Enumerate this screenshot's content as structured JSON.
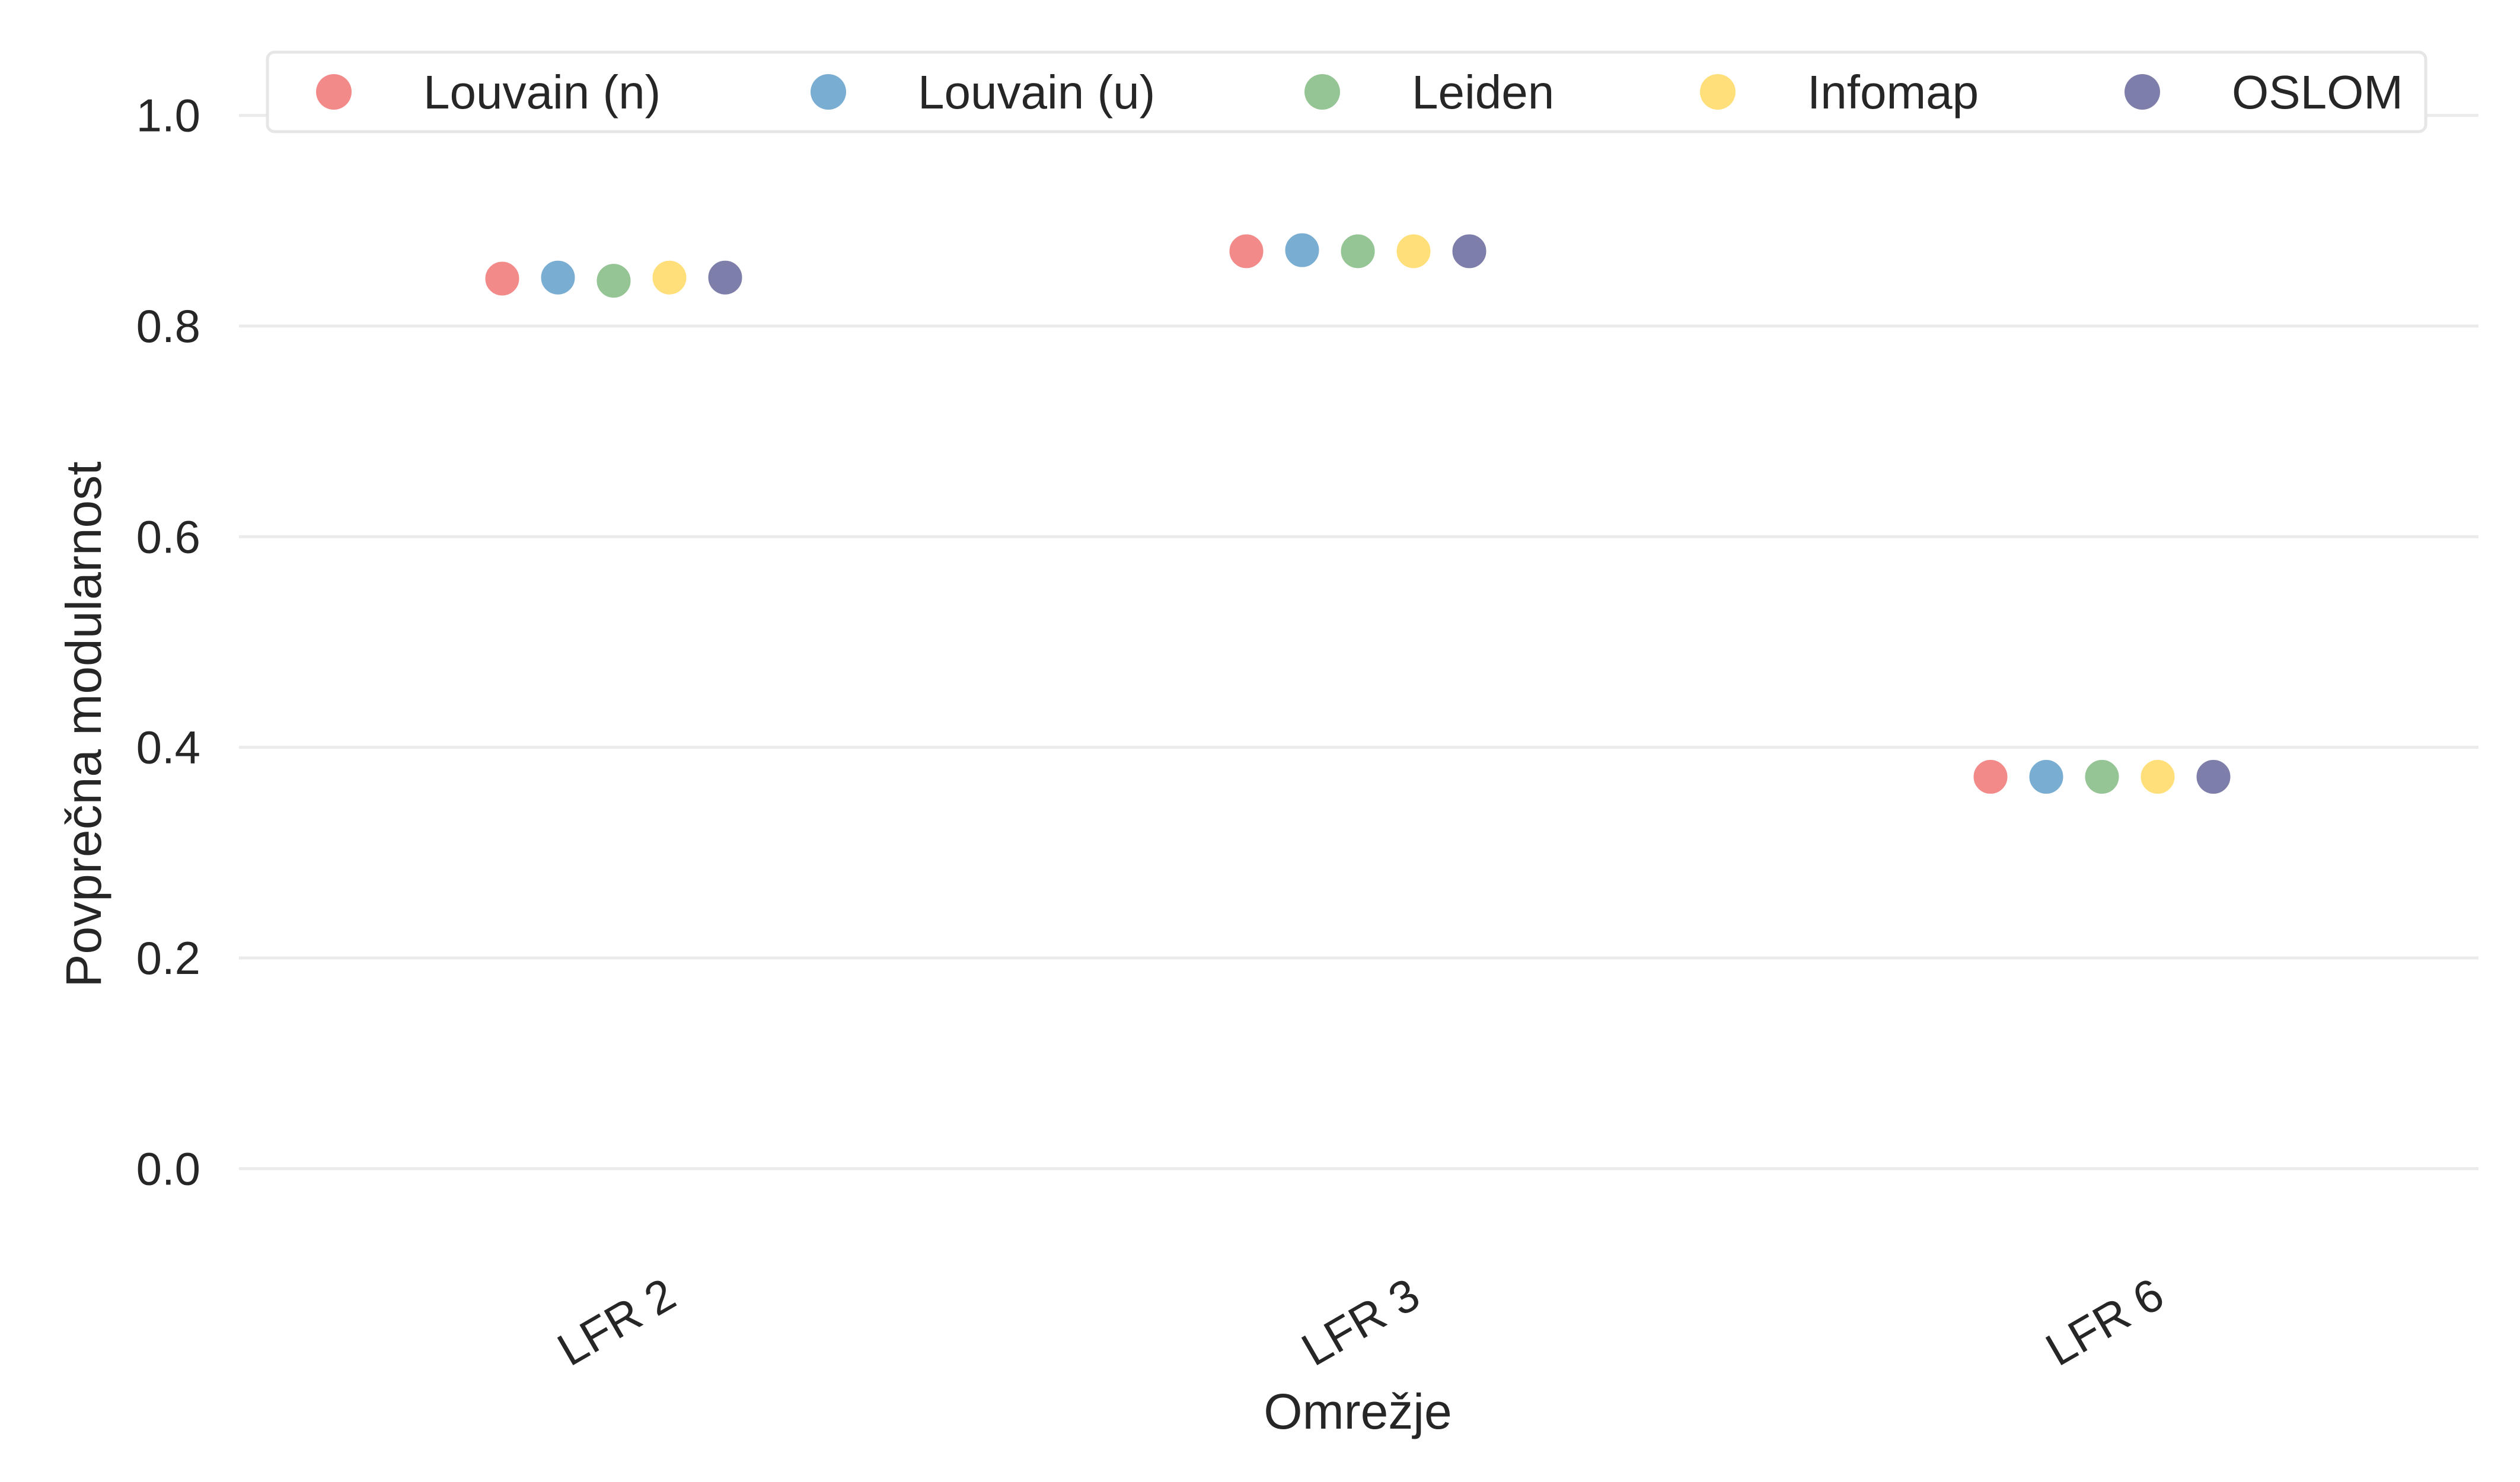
{
  "chart_data": {
    "type": "scatter",
    "title": "",
    "xlabel": "Omrežje",
    "ylabel": "Povprečna modularnost",
    "categories": [
      "LFR 2",
      "LFR 3",
      "LFR 6"
    ],
    "ylim": [
      -0.06,
      1.06
    ],
    "yticks": [
      0.0,
      0.2,
      0.4,
      0.6,
      0.8,
      1.0
    ],
    "ytick_labels": [
      "0.0",
      "0.2",
      "0.4",
      "0.6",
      "0.8",
      "1.0"
    ],
    "grid": "horizontal",
    "legend_position": "top",
    "series": [
      {
        "name": "Louvain (n)",
        "color": "#f28080",
        "values": [
          0.845,
          0.871,
          0.372
        ]
      },
      {
        "name": "Louvain (u)",
        "color": "#6ea6cd",
        "values": [
          0.846,
          0.872,
          0.372
        ]
      },
      {
        "name": "Leiden",
        "color": "#8cbf8c",
        "values": [
          0.843,
          0.871,
          0.372
        ]
      },
      {
        "name": "Infomap",
        "color": "#ffdc6e",
        "values": [
          0.846,
          0.871,
          0.372
        ]
      },
      {
        "name": "OSLOM",
        "color": "#7373a3",
        "values": [
          0.846,
          0.871,
          0.372
        ]
      }
    ]
  }
}
